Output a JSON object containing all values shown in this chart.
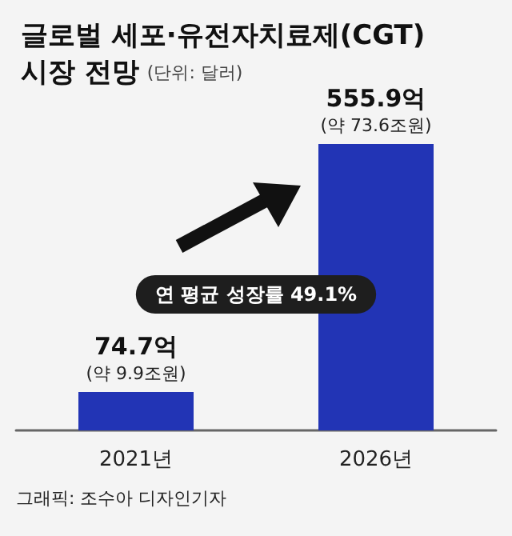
{
  "chart_data": {
    "type": "bar",
    "title": "글로벌 세포·유전자치료제(CGT) 시장 전망",
    "subtitle": "(단위: 달러)",
    "categories": [
      "2021년",
      "2026년"
    ],
    "values": [
      74.7,
      555.9
    ],
    "value_labels": [
      "74.7억\n(약 9.9조원)",
      "555.9억\n(약 73.6조원)"
    ],
    "color": "#2234b5",
    "annotations": [
      "연 평균 성장률 49.1%",
      "그래픽: 조수아 디자인기자"
    ]
  }
}
